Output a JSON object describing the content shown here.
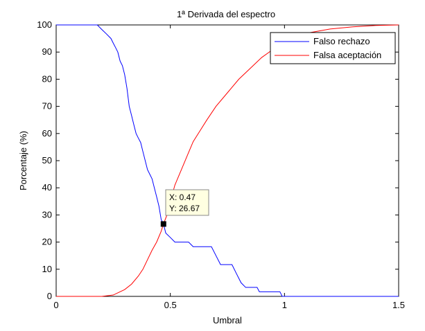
{
  "chart_data": {
    "type": "line",
    "title": "1ª Derivada del espectro",
    "xlabel": "Umbral",
    "ylabel": "Porcentaje (%)",
    "xlim": [
      0,
      1.5
    ],
    "ylim": [
      0,
      100
    ],
    "x_ticks": [
      "0",
      "0.5",
      "1",
      "1.5"
    ],
    "y_ticks": [
      "0",
      "10",
      "20",
      "30",
      "40",
      "50",
      "60",
      "70",
      "80",
      "90",
      "100"
    ],
    "grid": false,
    "legend_position": "top-right",
    "series": [
      {
        "name": "Falso rechazo",
        "color": "#0000ff",
        "points": [
          [
            0.0,
            100
          ],
          [
            0.18,
            100
          ],
          [
            0.2,
            98.3
          ],
          [
            0.22,
            96.7
          ],
          [
            0.24,
            95
          ],
          [
            0.25,
            93.3
          ],
          [
            0.26,
            91.7
          ],
          [
            0.27,
            90
          ],
          [
            0.28,
            86.7
          ],
          [
            0.29,
            85
          ],
          [
            0.3,
            81.7
          ],
          [
            0.31,
            76.7
          ],
          [
            0.32,
            70
          ],
          [
            0.33,
            66.7
          ],
          [
            0.34,
            63.3
          ],
          [
            0.35,
            60
          ],
          [
            0.36,
            58.3
          ],
          [
            0.37,
            56.7
          ],
          [
            0.38,
            53.3
          ],
          [
            0.39,
            50
          ],
          [
            0.4,
            46.7
          ],
          [
            0.41,
            45
          ],
          [
            0.42,
            43.3
          ],
          [
            0.43,
            40
          ],
          [
            0.44,
            36.7
          ],
          [
            0.45,
            33.3
          ],
          [
            0.46,
            28.3
          ],
          [
            0.47,
            26.67
          ],
          [
            0.48,
            23.3
          ],
          [
            0.5,
            21.7
          ],
          [
            0.52,
            20
          ],
          [
            0.58,
            20
          ],
          [
            0.6,
            18.3
          ],
          [
            0.68,
            18.3
          ],
          [
            0.7,
            15
          ],
          [
            0.72,
            11.7
          ],
          [
            0.77,
            11.7
          ],
          [
            0.79,
            8.3
          ],
          [
            0.81,
            5
          ],
          [
            0.83,
            3.3
          ],
          [
            0.88,
            3.3
          ],
          [
            0.89,
            1.7
          ],
          [
            0.98,
            1.7
          ],
          [
            0.99,
            0
          ],
          [
            1.5,
            0
          ]
        ]
      },
      {
        "name": "Falsa aceptación",
        "color": "#ff0000",
        "points": [
          [
            0.0,
            0
          ],
          [
            0.2,
            0
          ],
          [
            0.25,
            0.5
          ],
          [
            0.3,
            2.5
          ],
          [
            0.33,
            4.5
          ],
          [
            0.36,
            7.5
          ],
          [
            0.38,
            10
          ],
          [
            0.4,
            13.5
          ],
          [
            0.42,
            17
          ],
          [
            0.44,
            20
          ],
          [
            0.46,
            24
          ],
          [
            0.47,
            26.67
          ],
          [
            0.49,
            31
          ],
          [
            0.5,
            35
          ],
          [
            0.52,
            41
          ],
          [
            0.55,
            47
          ],
          [
            0.58,
            53
          ],
          [
            0.6,
            57
          ],
          [
            0.63,
            61
          ],
          [
            0.66,
            65
          ],
          [
            0.7,
            70
          ],
          [
            0.75,
            75
          ],
          [
            0.8,
            80
          ],
          [
            0.85,
            84
          ],
          [
            0.9,
            88
          ],
          [
            0.95,
            91
          ],
          [
            1.0,
            94
          ],
          [
            1.05,
            96
          ],
          [
            1.1,
            97
          ],
          [
            1.2,
            98.5
          ],
          [
            1.3,
            99.3
          ],
          [
            1.4,
            99.8
          ],
          [
            1.5,
            100
          ]
        ]
      }
    ],
    "annotation": {
      "x": 0.47,
      "y": 26.67,
      "x_text": "X: 0.47",
      "y_text": "Y: 26.67"
    }
  }
}
